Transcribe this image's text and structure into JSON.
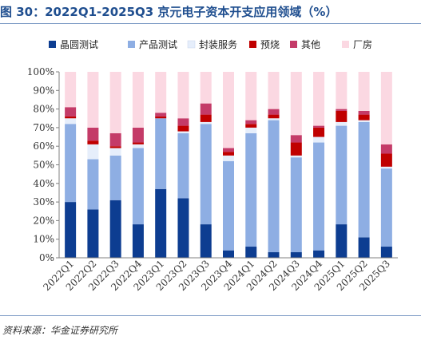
{
  "title": "图 30：2022Q1-2025Q3 京元电子资本开支应用领域（%）",
  "source": "资料来源：华金证券研究所",
  "chart_data": {
    "type": "bar",
    "stacked": true,
    "percent": true,
    "categories": [
      "2022Q1",
      "2022Q2",
      "2022Q3",
      "2022Q4",
      "2023Q1",
      "2023Q2",
      "2023Q3",
      "2023Q4",
      "2024Q1",
      "2024Q2",
      "2024Q3",
      "2024Q4",
      "2025Q1",
      "2025Q2",
      "2025Q3"
    ],
    "series": [
      {
        "name": "晶圆测试",
        "color": "#0d3d91",
        "values": [
          30,
          26,
          31,
          18,
          37,
          32,
          18,
          4,
          6,
          3,
          3,
          4,
          18,
          11,
          6
        ]
      },
      {
        "name": "产品测试",
        "color": "#8eaee3",
        "values": [
          42,
          27,
          24,
          41,
          38,
          35,
          54,
          48,
          61,
          71,
          51,
          58,
          53,
          62,
          42
        ]
      },
      {
        "name": "封装服务",
        "color": "#e6eefb",
        "values": [
          3,
          8,
          4,
          2,
          0,
          1,
          1,
          3,
          3,
          1,
          1,
          3,
          2,
          1,
          1
        ]
      },
      {
        "name": "预烧",
        "color": "#c00000",
        "values": [
          1,
          2,
          1,
          1,
          1,
          3,
          4,
          2,
          2,
          2,
          7,
          5,
          6,
          3,
          7
        ]
      },
      {
        "name": "其他",
        "color": "#c43b68",
        "values": [
          5,
          7,
          7,
          8,
          2,
          4,
          6,
          2,
          2,
          3,
          4,
          1,
          1,
          2,
          5
        ]
      },
      {
        "name": "厂房",
        "color": "#fbd8e2",
        "values": [
          19,
          30,
          33,
          30,
          22,
          25,
          17,
          41,
          26,
          20,
          34,
          29,
          20,
          21,
          39
        ]
      }
    ],
    "y_ticks": [
      "0%",
      "10%",
      "20%",
      "30%",
      "40%",
      "50%",
      "60%",
      "70%",
      "80%",
      "90%",
      "100%"
    ],
    "ylim": [
      0,
      100
    ],
    "legend": "top",
    "grid": false
  }
}
